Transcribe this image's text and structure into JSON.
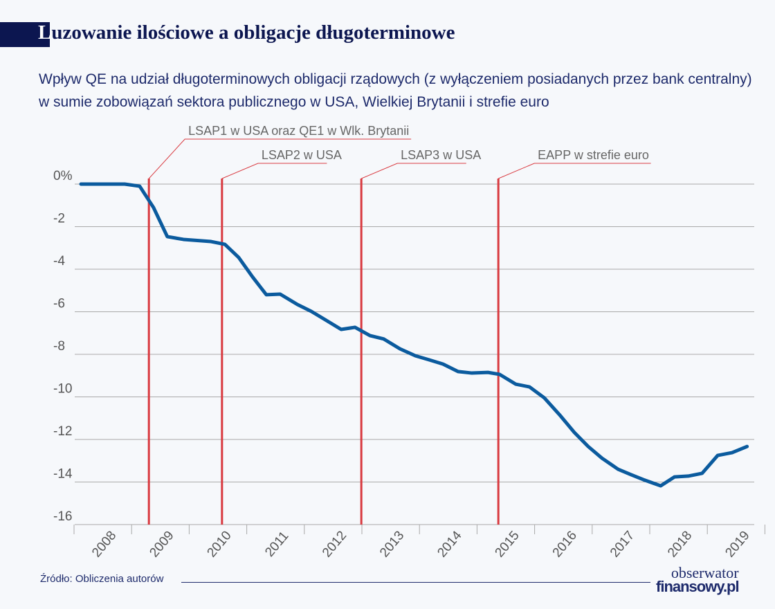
{
  "colors": {
    "title_band": "#0c1650",
    "line": "#0b5b9e",
    "event": "#d93a40",
    "grid": "#a9a9a9",
    "text": "#555555"
  },
  "header": {
    "title_first": "L",
    "title_rest": "uzowanie ilościowe a obligacje długoterminowe",
    "subtitle": "Wpływ QE na udział długoterminowych obligacji rządowych (z wyłączeniem posiadanych przez bank centralny) w sumie zobowiązań sektora publicznego w USA, Wielkiej Brytanii i strefie euro"
  },
  "chart_data": {
    "type": "line",
    "title": "Luzowanie ilościowe a obligacje długoterminowe",
    "xlabel": "",
    "ylabel": "",
    "xlim": [
      2008,
      2019.8
    ],
    "ylim": [
      -16,
      0
    ],
    "y_ticks": [
      0,
      -2,
      -4,
      -6,
      -8,
      -10,
      -12,
      -14,
      -16
    ],
    "y_tick_labels": [
      "0%",
      "-2",
      "-4",
      "-6",
      "-8",
      "-10",
      "-12",
      "-14",
      "-16"
    ],
    "x_tick_labels": [
      "2008",
      "2009",
      "2010",
      "2011",
      "2012",
      "2013",
      "2014",
      "2015",
      "2016",
      "2017",
      "2018",
      "2019"
    ],
    "grid": true,
    "series": [
      {
        "name": "Udział długoterminowych obligacji rządowych",
        "x": [
          2008.12,
          2008.88,
          2009.14,
          2009.38,
          2009.62,
          2009.9,
          2010.38,
          2010.62,
          2010.86,
          2011.1,
          2011.34,
          2011.58,
          2011.88,
          2012.12,
          2012.36,
          2012.64,
          2012.88,
          2013.14,
          2013.38,
          2013.66,
          2013.93,
          2014.17,
          2014.41,
          2014.67,
          2014.91,
          2015.19,
          2015.39,
          2015.67,
          2015.91,
          2016.17,
          2016.43,
          2016.69,
          2016.93,
          2017.17,
          2017.45,
          2017.68,
          2017.89,
          2018.19,
          2018.43,
          2018.67,
          2018.91,
          2019.18,
          2019.43,
          2019.69
        ],
        "y": [
          0,
          0,
          -0.1,
          -1.1,
          -2.47,
          -2.6,
          -2.7,
          -2.83,
          -3.45,
          -4.36,
          -5.2,
          -5.17,
          -5.66,
          -5.98,
          -6.37,
          -6.83,
          -6.73,
          -7.12,
          -7.28,
          -7.74,
          -8.07,
          -8.26,
          -8.46,
          -8.81,
          -8.88,
          -8.85,
          -8.94,
          -9.4,
          -9.53,
          -10.05,
          -10.83,
          -11.67,
          -12.33,
          -12.88,
          -13.4,
          -13.66,
          -13.89,
          -14.18,
          -13.76,
          -13.72,
          -13.59,
          -12.75,
          -12.62,
          -12.33
        ]
      }
    ],
    "annotations": [
      {
        "x": 2009.3,
        "label": "LSAP1 w USA oraz QE1 w Wlk. Brytanii",
        "level": 0
      },
      {
        "x": 2010.57,
        "label": "LSAP2 w USA",
        "level": 1
      },
      {
        "x": 2012.99,
        "label": "LSAP3 w USA",
        "level": 1
      },
      {
        "x": 2015.37,
        "label": "EAPP w strefie euro",
        "level": 1
      }
    ]
  },
  "footer": {
    "source": "Źródło: Obliczenia autorów",
    "logo_line1": "obserwator",
    "logo_line2": "finansowy.pl"
  }
}
